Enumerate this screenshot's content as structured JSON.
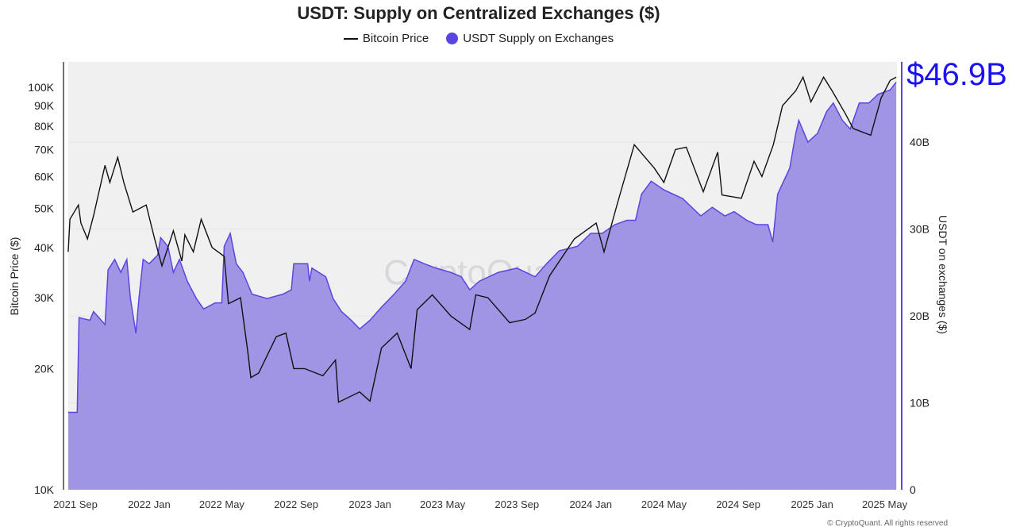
{
  "chart_data": {
    "type": "line+area",
    "title": "USDT: Supply on Centralized Exchanges ($)",
    "legend_position": "top",
    "grid": true,
    "watermark": "CryptoQuant",
    "copyright": "© CryptoQuant. All rights reserved",
    "annotation": "$46.9B",
    "annotation_color": "#1a12f5",
    "x_ticks": [
      {
        "date": "2021-09-01",
        "label": "2021 Sep"
      },
      {
        "date": "2022-01-01",
        "label": "2022 Jan"
      },
      {
        "date": "2022-05-01",
        "label": "2022 May"
      },
      {
        "date": "2022-09-01",
        "label": "2022 Sep"
      },
      {
        "date": "2023-01-01",
        "label": "2023 Jan"
      },
      {
        "date": "2023-05-01",
        "label": "2023 May"
      },
      {
        "date": "2023-09-01",
        "label": "2023 Sep"
      },
      {
        "date": "2024-01-01",
        "label": "2024 Jan"
      },
      {
        "date": "2024-05-01",
        "label": "2024 May"
      },
      {
        "date": "2024-09-01",
        "label": "2024 Sep"
      },
      {
        "date": "2025-01-01",
        "label": "2025 Jan"
      },
      {
        "date": "2025-05-01",
        "label": "2025 May"
      }
    ],
    "y_left": {
      "label": "Bitcoin Price ($)",
      "scale": "log",
      "range": [
        10000,
        120000
      ],
      "ticks": [
        {
          "v": 10000,
          "label": "10K"
        },
        {
          "v": 20000,
          "label": "20K"
        },
        {
          "v": 30000,
          "label": "30K"
        },
        {
          "v": 40000,
          "label": "40K"
        },
        {
          "v": 50000,
          "label": "50K"
        },
        {
          "v": 60000,
          "label": "60K"
        },
        {
          "v": 70000,
          "label": "70K"
        },
        {
          "v": 80000,
          "label": "80K"
        },
        {
          "v": 90000,
          "label": "90K"
        },
        {
          "v": 100000,
          "label": "100K"
        }
      ]
    },
    "y_right": {
      "label": "USDT on exchanges ($)",
      "scale": "linear",
      "range": [
        0,
        49
      ],
      "ticks": [
        {
          "v": 0,
          "label": "0"
        },
        {
          "v": 10,
          "label": "10B"
        },
        {
          "v": 20,
          "label": "20B"
        },
        {
          "v": 30,
          "label": "30B"
        },
        {
          "v": 40,
          "label": "40B"
        }
      ]
    },
    "series": [
      {
        "name": "Bitcoin Price",
        "type": "line",
        "axis": "left",
        "color": "#111111",
        "points": [
          [
            "2021-08-20",
            39000
          ],
          [
            "2021-08-23",
            47000
          ],
          [
            "2021-09-06",
            51000
          ],
          [
            "2021-09-10",
            46000
          ],
          [
            "2021-09-21",
            42000
          ],
          [
            "2021-10-01",
            48000
          ],
          [
            "2021-10-20",
            64000
          ],
          [
            "2021-10-28",
            58000
          ],
          [
            "2021-11-10",
            67000
          ],
          [
            "2021-11-20",
            58000
          ],
          [
            "2021-12-05",
            49000
          ],
          [
            "2021-12-27",
            51000
          ],
          [
            "2022-01-10",
            42000
          ],
          [
            "2022-01-22",
            36000
          ],
          [
            "2022-02-10",
            44000
          ],
          [
            "2022-02-24",
            37000
          ],
          [
            "2022-03-01",
            43000
          ],
          [
            "2022-03-15",
            39000
          ],
          [
            "2022-03-28",
            47000
          ],
          [
            "2022-04-15",
            40000
          ],
          [
            "2022-05-05",
            38000
          ],
          [
            "2022-05-12",
            29000
          ],
          [
            "2022-06-01",
            30000
          ],
          [
            "2022-06-13",
            22000
          ],
          [
            "2022-06-18",
            19000
          ],
          [
            "2022-07-01",
            19500
          ],
          [
            "2022-07-30",
            24000
          ],
          [
            "2022-08-15",
            24500
          ],
          [
            "2022-08-28",
            20000
          ],
          [
            "2022-09-15",
            20000
          ],
          [
            "2022-10-15",
            19200
          ],
          [
            "2022-11-05",
            21000
          ],
          [
            "2022-11-10",
            16500
          ],
          [
            "2022-12-15",
            17500
          ],
          [
            "2023-01-01",
            16600
          ],
          [
            "2023-01-20",
            22500
          ],
          [
            "2023-02-15",
            24500
          ],
          [
            "2023-03-10",
            20000
          ],
          [
            "2023-03-20",
            28000
          ],
          [
            "2023-04-14",
            30500
          ],
          [
            "2023-05-15",
            27000
          ],
          [
            "2023-06-15",
            25000
          ],
          [
            "2023-06-25",
            30500
          ],
          [
            "2023-07-15",
            30000
          ],
          [
            "2023-08-20",
            26000
          ],
          [
            "2023-09-15",
            26500
          ],
          [
            "2023-10-01",
            27500
          ],
          [
            "2023-10-25",
            34000
          ],
          [
            "2023-12-05",
            42000
          ],
          [
            "2024-01-10",
            46000
          ],
          [
            "2024-01-23",
            39000
          ],
          [
            "2024-02-15",
            52000
          ],
          [
            "2024-03-13",
            72000
          ],
          [
            "2024-04-15",
            63000
          ],
          [
            "2024-05-01",
            58000
          ],
          [
            "2024-05-20",
            70000
          ],
          [
            "2024-06-07",
            71000
          ],
          [
            "2024-07-05",
            55000
          ],
          [
            "2024-07-29",
            69000
          ],
          [
            "2024-08-05",
            54000
          ],
          [
            "2024-09-06",
            53000
          ],
          [
            "2024-09-27",
            65500
          ],
          [
            "2024-10-10",
            60000
          ],
          [
            "2024-10-29",
            72000
          ],
          [
            "2024-11-13",
            90000
          ],
          [
            "2024-12-05",
            98000
          ],
          [
            "2024-12-17",
            106000
          ],
          [
            "2024-12-30",
            92000
          ],
          [
            "2025-01-20",
            106000
          ],
          [
            "2025-02-03",
            98000
          ],
          [
            "2025-02-25",
            86000
          ],
          [
            "2025-03-10",
            79000
          ],
          [
            "2025-04-08",
            76000
          ],
          [
            "2025-04-25",
            94000
          ],
          [
            "2025-05-10",
            104000
          ],
          [
            "2025-05-20",
            106000
          ]
        ]
      },
      {
        "name": "USDT Supply on Exchanges",
        "type": "area",
        "axis": "right",
        "unit": "B",
        "color": "#5b45e0",
        "fill": "#a095e4",
        "points": [
          [
            "2021-08-20",
            8.9
          ],
          [
            "2021-09-04",
            8.9
          ],
          [
            "2021-09-07",
            19.8
          ],
          [
            "2021-09-25",
            19.5
          ],
          [
            "2021-10-01",
            20.5
          ],
          [
            "2021-10-20",
            19
          ],
          [
            "2021-10-25",
            25.3
          ],
          [
            "2021-11-05",
            26.5
          ],
          [
            "2021-11-15",
            25
          ],
          [
            "2021-11-25",
            26.5
          ],
          [
            "2021-12-01",
            22
          ],
          [
            "2021-12-10",
            18
          ],
          [
            "2021-12-15",
            22
          ],
          [
            "2021-12-22",
            26.5
          ],
          [
            "2022-01-01",
            26
          ],
          [
            "2022-01-15",
            27
          ],
          [
            "2022-01-20",
            29
          ],
          [
            "2022-02-01",
            28
          ],
          [
            "2022-02-10",
            25
          ],
          [
            "2022-02-20",
            26.5
          ],
          [
            "2022-03-05",
            24
          ],
          [
            "2022-03-20",
            22
          ],
          [
            "2022-04-01",
            20.8
          ],
          [
            "2022-04-20",
            21.5
          ],
          [
            "2022-05-01",
            21.5
          ],
          [
            "2022-05-05",
            28
          ],
          [
            "2022-05-15",
            29.5
          ],
          [
            "2022-05-25",
            26
          ],
          [
            "2022-06-05",
            25
          ],
          [
            "2022-06-20",
            22.5
          ],
          [
            "2022-07-15",
            22
          ],
          [
            "2022-08-10",
            22.5
          ],
          [
            "2022-08-24",
            23
          ],
          [
            "2022-08-28",
            26
          ],
          [
            "2022-09-20",
            26
          ],
          [
            "2022-09-23",
            24
          ],
          [
            "2022-09-27",
            25.5
          ],
          [
            "2022-10-20",
            24.5
          ],
          [
            "2022-11-01",
            22
          ],
          [
            "2022-11-15",
            20.5
          ],
          [
            "2022-12-01",
            19.5
          ],
          [
            "2022-12-15",
            18.5
          ],
          [
            "2023-01-01",
            19.5
          ],
          [
            "2023-01-20",
            21
          ],
          [
            "2023-02-10",
            22.5
          ],
          [
            "2023-03-01",
            24
          ],
          [
            "2023-03-15",
            26.5
          ],
          [
            "2023-04-01",
            26
          ],
          [
            "2023-04-20",
            25.5
          ],
          [
            "2023-05-15",
            25
          ],
          [
            "2023-06-01",
            24.5
          ],
          [
            "2023-06-15",
            23
          ],
          [
            "2023-07-01",
            24
          ],
          [
            "2023-08-01",
            25
          ],
          [
            "2023-09-01",
            25.5
          ],
          [
            "2023-10-01",
            24.5
          ],
          [
            "2023-10-20",
            26
          ],
          [
            "2023-11-10",
            27.5
          ],
          [
            "2023-12-10",
            28
          ],
          [
            "2024-01-01",
            29.5
          ],
          [
            "2024-01-20",
            29.5
          ],
          [
            "2024-02-10",
            30.5
          ],
          [
            "2024-03-01",
            31
          ],
          [
            "2024-03-15",
            31
          ],
          [
            "2024-03-25",
            34
          ],
          [
            "2024-04-10",
            35.5
          ],
          [
            "2024-05-01",
            34.5
          ],
          [
            "2024-06-01",
            33.5
          ],
          [
            "2024-07-01",
            31.5
          ],
          [
            "2024-07-20",
            32.5
          ],
          [
            "2024-08-10",
            31.5
          ],
          [
            "2024-08-25",
            32
          ],
          [
            "2024-09-15",
            31
          ],
          [
            "2024-10-01",
            30.5
          ],
          [
            "2024-10-20",
            30.5
          ],
          [
            "2024-10-28",
            28.5
          ],
          [
            "2024-11-05",
            34
          ],
          [
            "2024-11-25",
            37
          ],
          [
            "2024-12-05",
            41
          ],
          [
            "2024-12-10",
            42.5
          ],
          [
            "2024-12-25",
            40
          ],
          [
            "2025-01-10",
            41
          ],
          [
            "2025-01-25",
            43.5
          ],
          [
            "2025-02-05",
            44.5
          ],
          [
            "2025-02-20",
            42.5
          ],
          [
            "2025-03-05",
            41.5
          ],
          [
            "2025-03-20",
            44.5
          ],
          [
            "2025-04-05",
            44.5
          ],
          [
            "2025-04-20",
            45.5
          ],
          [
            "2025-05-10",
            46
          ],
          [
            "2025-05-20",
            46.9
          ]
        ]
      }
    ]
  }
}
